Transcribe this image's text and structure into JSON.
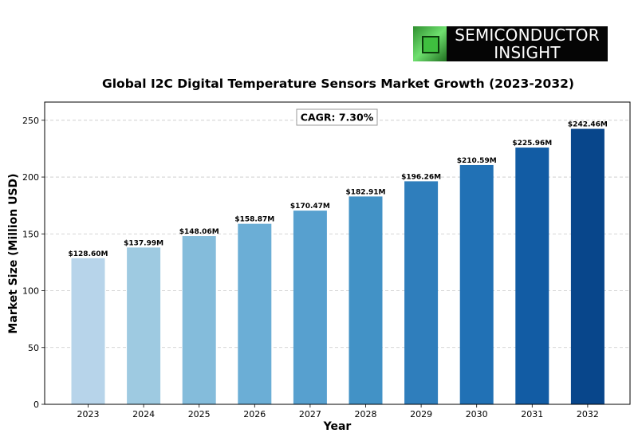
{
  "logo": {
    "line1": "SEMICONDUCTOR",
    "line2": "INSIGHT",
    "chip_icon": "chip-icon"
  },
  "chart_data": {
    "type": "bar",
    "title": "Global I2C Digital Temperature Sensors Market Growth (2023-2032)",
    "xlabel": "Year",
    "ylabel": "Market Size (Million USD)",
    "categories": [
      "2023",
      "2024",
      "2025",
      "2026",
      "2027",
      "2028",
      "2029",
      "2030",
      "2031",
      "2032"
    ],
    "values": [
      128.6,
      137.99,
      148.06,
      158.87,
      170.47,
      182.91,
      196.26,
      210.59,
      225.96,
      242.46
    ],
    "value_labels": [
      "$128.60M",
      "$137.99M",
      "$148.06M",
      "$158.87M",
      "$170.47M",
      "$182.91M",
      "$196.26M",
      "$210.59M",
      "$225.96M",
      "$242.46M"
    ],
    "ylim": [
      0,
      266
    ],
    "yticks": [
      0,
      50,
      100,
      150,
      200,
      250
    ],
    "grid": "y-dashed",
    "annotation": "CAGR: 7.30%",
    "colors": [
      "#b7d4ea",
      "#9ecae1",
      "#84bcdb",
      "#6baed6",
      "#57a0cf",
      "#4292c6",
      "#2f7ebc",
      "#2171b5",
      "#125ca4",
      "#08468b"
    ]
  }
}
